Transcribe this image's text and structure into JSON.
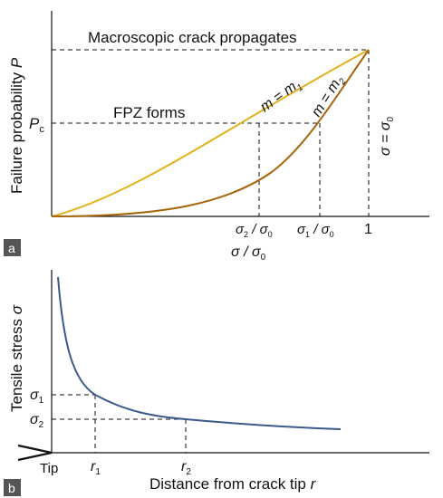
{
  "panel_a": {
    "badge": "a",
    "y_axis_label_text": "Failure probability",
    "y_axis_label_var": "P",
    "top_annotation": "Macroscopic crack propagates",
    "fpz_annotation": "FPZ forms",
    "pc_label_main": "P",
    "pc_label_sub": "c",
    "curve_m1_label_main": "m = m",
    "curve_m1_label_sub": "1",
    "curve_m2_label_main": "m = m",
    "curve_m2_label_sub": "2",
    "vertical_label_main": "σ = σ",
    "vertical_label_sub": "0",
    "tick_sigma2": "σ",
    "tick_sigma2_sub": "2",
    "tick_sigma2_rest": " / σ",
    "tick_sigma2_sub0": "0",
    "tick_sigma1": "σ",
    "tick_sigma1_sub": "1",
    "tick_sigma1_rest": " / σ",
    "tick_sigma1_sub0": "0",
    "tick_one": "1",
    "x_axis_label_main": "σ / σ",
    "x_axis_label_sub": "0",
    "colors": {
      "m1": "#E2B21C",
      "m2": "#A8660A"
    }
  },
  "panel_b": {
    "badge": "b",
    "y_axis_label_text": "Tensile stress",
    "y_axis_label_var": "σ",
    "sigma1_main": "σ",
    "sigma1_sub": "1",
    "sigma2_main": "σ",
    "sigma2_sub": "2",
    "tip_label": "Tip",
    "r1_main": "r",
    "r1_sub": "1",
    "r2_main": "r",
    "r2_sub": "2",
    "x_axis_label_text": "Distance from crack tip",
    "x_axis_label_var": "r",
    "colors": {
      "curve": "#3A5A8C"
    }
  },
  "colors": {
    "badge_bg": "#555555",
    "axis": "#111111"
  }
}
